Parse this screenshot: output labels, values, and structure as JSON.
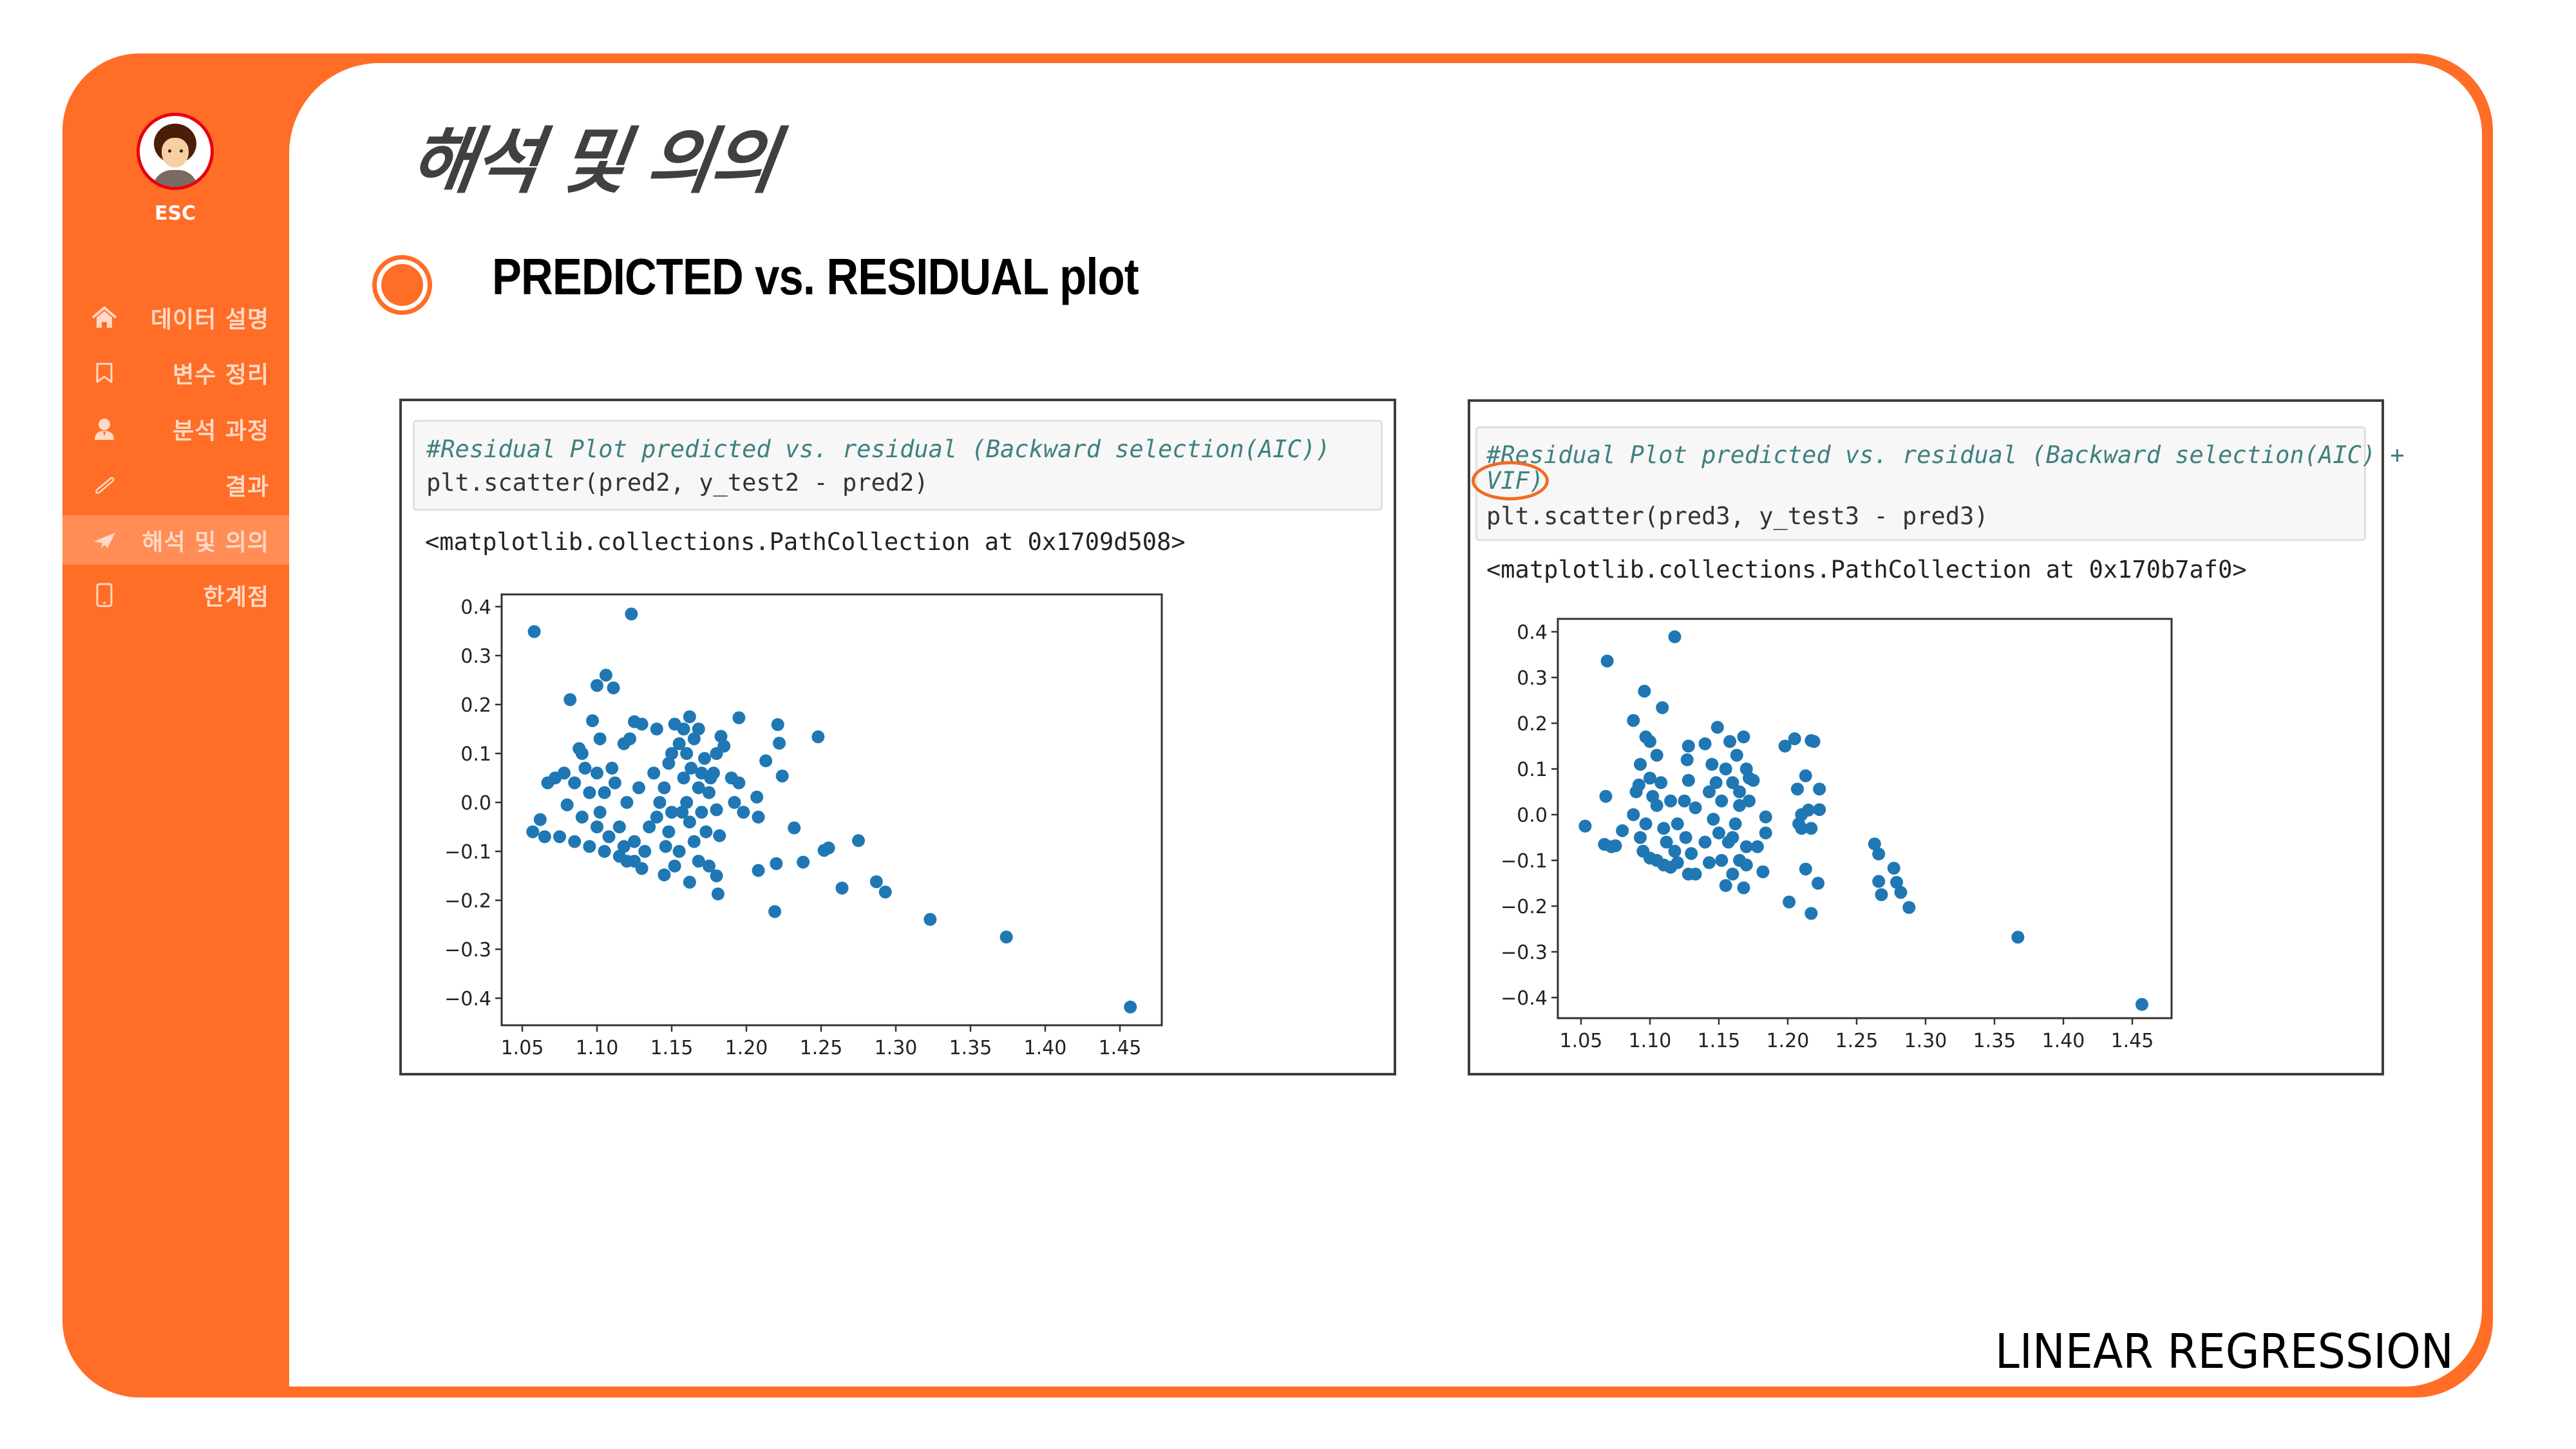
{
  "sidebar": {
    "brand": "ESC",
    "items": [
      {
        "label": "데이터 설명",
        "icon": "home-icon",
        "active": false
      },
      {
        "label": "변수 정리",
        "icon": "bookmark-icon",
        "active": false
      },
      {
        "label": "분석 과정",
        "icon": "person-icon",
        "active": false
      },
      {
        "label": "결과",
        "icon": "paperclip-icon",
        "active": false
      },
      {
        "label": "해석 및 의의",
        "icon": "paper-plane-icon",
        "active": true
      },
      {
        "label": "한계점",
        "icon": "tablet-icon",
        "active": false
      }
    ]
  },
  "page": {
    "title": "해석 및 의의",
    "heading": "PREDICTED vs. RESIDUAL plot",
    "footer": "LINEAR REGRESSION"
  },
  "colors": {
    "accent": "#FF6D26",
    "sidebar_text": "#FFD9C4",
    "title": "#404040",
    "point": "#1F77B4",
    "comment": "#408080"
  },
  "cells": [
    {
      "comment_lines": [
        "#Residual Plot predicted vs. residual (Backward selection(AIC))"
      ],
      "code": "plt.scatter(pred2, y_test2 - pred2)",
      "output": "<matplotlib.collections.PathCollection at 0x1709d508>"
    },
    {
      "comment_lines": [
        "#Residual Plot predicted vs. residual (Backward selection(AIC) +",
        "VIF)"
      ],
      "code": "plt.scatter(pred3, y_test3 - pred3)",
      "output": "<matplotlib.collections.PathCollection at 0x170b7af0>",
      "highlight": "VIF)"
    }
  ],
  "chart_data": [
    {
      "type": "scatter",
      "title": "",
      "xlabel": "",
      "ylabel": "",
      "xlim": [
        1.037,
        1.478
      ],
      "ylim": [
        -0.446,
        0.43
      ],
      "xticks": [
        "1.05",
        "1.10",
        "1.15",
        "1.20",
        "1.25",
        "1.30",
        "1.35",
        "1.40",
        "1.45"
      ],
      "yticks": [
        "0.4",
        "0.3",
        "0.2",
        "0.1",
        "0.0",
        "−0.1",
        "−0.2",
        "−0.3",
        "−0.4"
      ],
      "grid": false,
      "color": "#1F77B4",
      "points": [
        [
          1.058,
          0.349
        ],
        [
          1.123,
          0.385
        ],
        [
          1.106,
          0.26
        ],
        [
          1.1,
          0.239
        ],
        [
          1.111,
          0.234
        ],
        [
          1.082,
          0.21
        ],
        [
          1.195,
          0.173
        ],
        [
          1.221,
          0.159
        ],
        [
          1.248,
          0.134
        ],
        [
          1.222,
          0.121
        ],
        [
          1.213,
          0.085
        ],
        [
          1.224,
          0.054
        ],
        [
          1.207,
          0.011
        ],
        [
          1.208,
          -0.03
        ],
        [
          1.232,
          -0.052
        ],
        [
          1.275,
          -0.078
        ],
        [
          1.255,
          -0.093
        ],
        [
          1.252,
          -0.098
        ],
        [
          1.208,
          -0.139
        ],
        [
          1.22,
          -0.125
        ],
        [
          1.238,
          -0.122
        ],
        [
          1.264,
          -0.175
        ],
        [
          1.287,
          -0.162
        ],
        [
          1.293,
          -0.183
        ],
        [
          1.181,
          -0.187
        ],
        [
          1.219,
          -0.223
        ],
        [
          1.323,
          -0.239
        ],
        [
          1.374,
          -0.275
        ],
        [
          1.457,
          -0.418
        ],
        [
          1.097,
          0.167
        ],
        [
          1.102,
          0.13
        ],
        [
          1.09,
          0.1
        ],
        [
          1.088,
          0.11
        ],
        [
          1.125,
          0.165
        ],
        [
          1.13,
          0.16
        ],
        [
          1.118,
          0.12
        ],
        [
          1.122,
          0.13
        ],
        [
          1.14,
          0.15
        ],
        [
          1.152,
          0.16
        ],
        [
          1.162,
          0.175
        ],
        [
          1.168,
          0.15
        ],
        [
          1.183,
          0.135
        ],
        [
          1.18,
          0.1
        ],
        [
          1.185,
          0.115
        ],
        [
          1.19,
          0.05
        ],
        [
          1.195,
          0.04
        ],
        [
          1.192,
          0.0
        ],
        [
          1.198,
          -0.02
        ],
        [
          1.18,
          -0.015
        ],
        [
          1.182,
          -0.068
        ],
        [
          1.18,
          -0.15
        ],
        [
          1.175,
          -0.13
        ],
        [
          1.162,
          -0.163
        ],
        [
          1.145,
          -0.148
        ],
        [
          1.13,
          -0.135
        ],
        [
          1.12,
          -0.12
        ],
        [
          1.062,
          -0.035
        ],
        [
          1.057,
          -0.06
        ],
        [
          1.067,
          0.04
        ],
        [
          1.072,
          0.05
        ],
        [
          1.078,
          0.06
        ],
        [
          1.08,
          -0.005
        ],
        [
          1.065,
          -0.07
        ],
        [
          1.075,
          -0.07
        ],
        [
          1.085,
          -0.08
        ],
        [
          1.095,
          -0.09
        ],
        [
          1.105,
          -0.1
        ],
        [
          1.115,
          -0.11
        ],
        [
          1.125,
          -0.12
        ],
        [
          1.11,
          0.07
        ],
        [
          1.1,
          0.06
        ],
        [
          1.105,
          0.02
        ],
        [
          1.12,
          0.0
        ],
        [
          1.115,
          -0.05
        ],
        [
          1.125,
          -0.08
        ],
        [
          1.135,
          -0.05
        ],
        [
          1.14,
          -0.03
        ],
        [
          1.145,
          0.03
        ],
        [
          1.148,
          0.08
        ],
        [
          1.15,
          0.1
        ],
        [
          1.155,
          0.12
        ],
        [
          1.158,
          0.05
        ],
        [
          1.16,
          0.0
        ],
        [
          1.162,
          -0.04
        ],
        [
          1.165,
          -0.08
        ],
        [
          1.168,
          -0.12
        ],
        [
          1.17,
          0.06
        ],
        [
          1.172,
          0.09
        ],
        [
          1.175,
          0.02
        ],
        [
          1.155,
          -0.1
        ],
        [
          1.152,
          -0.13
        ],
        [
          1.148,
          -0.06
        ],
        [
          1.142,
          0.0
        ],
        [
          1.138,
          0.06
        ],
        [
          1.165,
          0.13
        ],
        [
          1.158,
          0.15
        ],
        [
          1.095,
          0.02
        ],
        [
          1.09,
          -0.03
        ],
        [
          1.1,
          -0.05
        ],
        [
          1.108,
          -0.07
        ],
        [
          1.085,
          0.04
        ],
        [
          1.092,
          0.07
        ],
        [
          1.128,
          0.03
        ],
        [
          1.132,
          -0.1
        ],
        [
          1.118,
          -0.09
        ],
        [
          1.102,
          -0.02
        ],
        [
          1.112,
          0.04
        ],
        [
          1.16,
          0.1
        ],
        [
          1.163,
          0.07
        ],
        [
          1.157,
          -0.02
        ],
        [
          1.17,
          -0.02
        ],
        [
          1.173,
          -0.06
        ],
        [
          1.168,
          0.03
        ],
        [
          1.15,
          -0.02
        ],
        [
          1.146,
          -0.09
        ],
        [
          1.176,
          0.05
        ],
        [
          1.178,
          0.06
        ]
      ]
    },
    {
      "type": "scatter",
      "title": "",
      "xlabel": "",
      "ylabel": "",
      "xlim": [
        1.034,
        1.479
      ],
      "ylim": [
        -0.44,
        0.44
      ],
      "xticks": [
        "1.05",
        "1.10",
        "1.15",
        "1.20",
        "1.25",
        "1.30",
        "1.35",
        "1.40",
        "1.45"
      ],
      "yticks": [
        "0.4",
        "0.3",
        "0.2",
        "0.1",
        "0.0",
        "−0.1",
        "−0.2",
        "−0.3",
        "−0.4"
      ],
      "grid": false,
      "color": "#1F77B4",
      "points": [
        [
          1.069,
          0.336
        ],
        [
          1.118,
          0.389
        ],
        [
          1.096,
          0.27
        ],
        [
          1.109,
          0.234
        ],
        [
          1.088,
          0.206
        ],
        [
          1.149,
          0.191
        ],
        [
          1.198,
          0.15
        ],
        [
          1.205,
          0.166
        ],
        [
          1.217,
          0.162
        ],
        [
          1.219,
          0.16
        ],
        [
          1.213,
          0.085
        ],
        [
          1.207,
          0.056
        ],
        [
          1.223,
          0.056
        ],
        [
          1.223,
          0.011
        ],
        [
          1.053,
          -0.025
        ],
        [
          1.068,
          0.04
        ],
        [
          1.263,
          -0.064
        ],
        [
          1.266,
          -0.086
        ],
        [
          1.277,
          -0.117
        ],
        [
          1.266,
          -0.146
        ],
        [
          1.279,
          -0.148
        ],
        [
          1.268,
          -0.175
        ],
        [
          1.282,
          -0.17
        ],
        [
          1.288,
          -0.203
        ],
        [
          1.213,
          -0.119
        ],
        [
          1.222,
          -0.15
        ],
        [
          1.201,
          -0.191
        ],
        [
          1.217,
          -0.216
        ],
        [
          1.367,
          -0.268
        ],
        [
          1.457,
          -0.415
        ],
        [
          1.184,
          -0.005
        ],
        [
          1.184,
          -0.04
        ],
        [
          1.208,
          -0.02
        ],
        [
          1.21,
          0.0
        ],
        [
          1.215,
          0.01
        ],
        [
          1.217,
          -0.03
        ],
        [
          1.21,
          -0.03
        ],
        [
          1.067,
          -0.065
        ],
        [
          1.072,
          -0.07
        ],
        [
          1.075,
          -0.068
        ],
        [
          1.08,
          -0.035
        ],
        [
          1.088,
          0.0
        ],
        [
          1.09,
          0.05
        ],
        [
          1.092,
          0.065
        ],
        [
          1.093,
          0.11
        ],
        [
          1.097,
          0.17
        ],
        [
          1.1,
          0.16
        ],
        [
          1.105,
          0.13
        ],
        [
          1.095,
          -0.08
        ],
        [
          1.1,
          -0.095
        ],
        [
          1.105,
          -0.1
        ],
        [
          1.11,
          -0.11
        ],
        [
          1.115,
          -0.115
        ],
        [
          1.12,
          -0.105
        ],
        [
          1.112,
          -0.06
        ],
        [
          1.105,
          0.02
        ],
        [
          1.1,
          0.08
        ],
        [
          1.108,
          0.07
        ],
        [
          1.115,
          0.03
        ],
        [
          1.12,
          -0.02
        ],
        [
          1.125,
          0.03
        ],
        [
          1.126,
          -0.05
        ],
        [
          1.13,
          -0.085
        ],
        [
          1.128,
          -0.13
        ],
        [
          1.133,
          -0.13
        ],
        [
          1.14,
          -0.06
        ],
        [
          1.133,
          0.015
        ],
        [
          1.128,
          0.075
        ],
        [
          1.127,
          0.12
        ],
        [
          1.128,
          0.15
        ],
        [
          1.14,
          0.155
        ],
        [
          1.145,
          0.11
        ],
        [
          1.143,
          0.05
        ],
        [
          1.146,
          -0.01
        ],
        [
          1.143,
          -0.105
        ],
        [
          1.15,
          -0.04
        ],
        [
          1.152,
          0.03
        ],
        [
          1.155,
          0.1
        ],
        [
          1.158,
          0.16
        ],
        [
          1.16,
          0.07
        ],
        [
          1.162,
          -0.02
        ],
        [
          1.155,
          -0.155
        ],
        [
          1.16,
          -0.13
        ],
        [
          1.165,
          -0.1
        ],
        [
          1.168,
          -0.16
        ],
        [
          1.17,
          -0.07
        ],
        [
          1.165,
          0.02
        ],
        [
          1.168,
          0.17
        ],
        [
          1.17,
          0.1
        ],
        [
          1.172,
          0.08
        ],
        [
          1.175,
          0.075
        ],
        [
          1.172,
          0.03
        ],
        [
          1.178,
          -0.07
        ],
        [
          1.182,
          -0.125
        ],
        [
          1.17,
          -0.11
        ],
        [
          1.163,
          0.13
        ],
        [
          1.157,
          -0.06
        ],
        [
          1.152,
          -0.1
        ],
        [
          1.148,
          0.07
        ],
        [
          1.097,
          -0.02
        ],
        [
          1.093,
          -0.05
        ],
        [
          1.102,
          0.04
        ],
        [
          1.11,
          -0.03
        ],
        [
          1.118,
          -0.08
        ],
        [
          1.165,
          0.05
        ],
        [
          1.16,
          -0.05
        ]
      ]
    }
  ]
}
